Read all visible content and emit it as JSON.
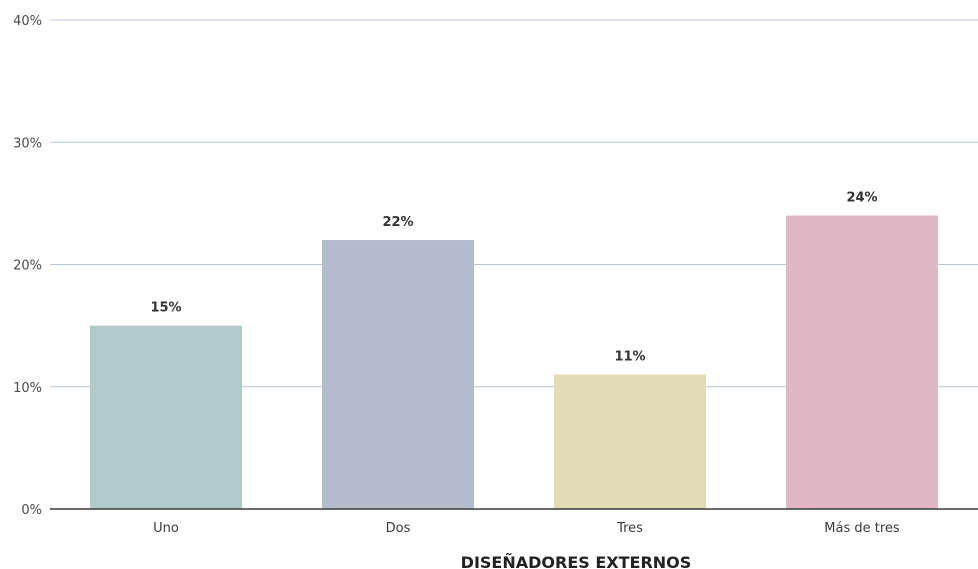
{
  "chart_data": {
    "type": "bar",
    "title": "",
    "xlabel": "DISEÑADORES EXTERNOS",
    "ylabel": "",
    "categories": [
      "Uno",
      "Dos",
      "Tres",
      "Más de tres"
    ],
    "values": [
      15,
      22,
      11,
      24
    ],
    "value_labels": [
      "15%",
      "22%",
      "11%",
      "24%"
    ],
    "bar_colors": [
      "#b2cbc8",
      "#b2bccd",
      "#e4dbb7",
      "#e0b7c5"
    ],
    "ylim": [
      0,
      40
    ],
    "yticks": [
      0,
      10,
      20,
      30,
      40
    ],
    "ytick_labels": [
      "0%",
      "10%",
      "20%",
      "30%",
      "40%"
    ],
    "grid": true,
    "legend": "none",
    "colors": {
      "grid": "#b8c4cf",
      "baseline": "#3a3a3a"
    }
  }
}
